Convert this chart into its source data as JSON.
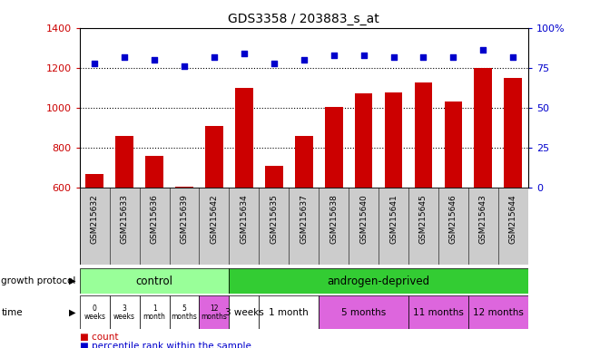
{
  "title": "GDS3358 / 203883_s_at",
  "samples": [
    "GSM215632",
    "GSM215633",
    "GSM215636",
    "GSM215639",
    "GSM215642",
    "GSM215634",
    "GSM215635",
    "GSM215637",
    "GSM215638",
    "GSM215640",
    "GSM215641",
    "GSM215645",
    "GSM215646",
    "GSM215643",
    "GSM215644"
  ],
  "count_values": [
    670,
    862,
    762,
    608,
    910,
    1100,
    710,
    860,
    1005,
    1072,
    1075,
    1125,
    1030,
    1200,
    1150
  ],
  "percentile_values": [
    78,
    82,
    80,
    76,
    82,
    84,
    78,
    80,
    83,
    83,
    82,
    82,
    82,
    86,
    82
  ],
  "ylim_left": [
    600,
    1400
  ],
  "ylim_right": [
    0,
    100
  ],
  "yticks_left": [
    600,
    800,
    1000,
    1200,
    1400
  ],
  "yticks_right": [
    0,
    25,
    50,
    75,
    100
  ],
  "bar_color": "#cc0000",
  "dot_color": "#0000cc",
  "control_color": "#99ff99",
  "androgen_color": "#33cc33",
  "time_bg_white": "#ffffff",
  "time_bg_pink": "#dd66dd",
  "control_samples": 5,
  "androgen_samples": 10,
  "control_label": "control",
  "androgen_label": "androgen-deprived",
  "time_control_labels": [
    "0\nweeks",
    "3\nweeks",
    "1\nmonth",
    "5\nmonths",
    "12\nmonths"
  ],
  "time_androgen_groups": [
    {
      "label": "3 weeks",
      "start": 5,
      "end": 6,
      "color": "#ffffff"
    },
    {
      "label": "1 month",
      "start": 6,
      "end": 8,
      "color": "#ffffff"
    },
    {
      "label": "5 months",
      "start": 8,
      "end": 11,
      "color": "#dd66dd"
    },
    {
      "label": "11 months",
      "start": 11,
      "end": 13,
      "color": "#dd66dd"
    },
    {
      "label": "12 months",
      "start": 13,
      "end": 15,
      "color": "#dd66dd"
    }
  ],
  "growth_protocol_label": "growth protocol",
  "time_label": "time",
  "legend_count": "count",
  "legend_percentile": "percentile rank within the sample",
  "xlabel_color": "#cc0000",
  "ylabel_right_color": "#0000cc",
  "title_color": "#000000",
  "bg_color": "#ffffff",
  "ticklabel_bg": "#cccccc",
  "grid_yticks": [
    800,
    1000,
    1200
  ]
}
